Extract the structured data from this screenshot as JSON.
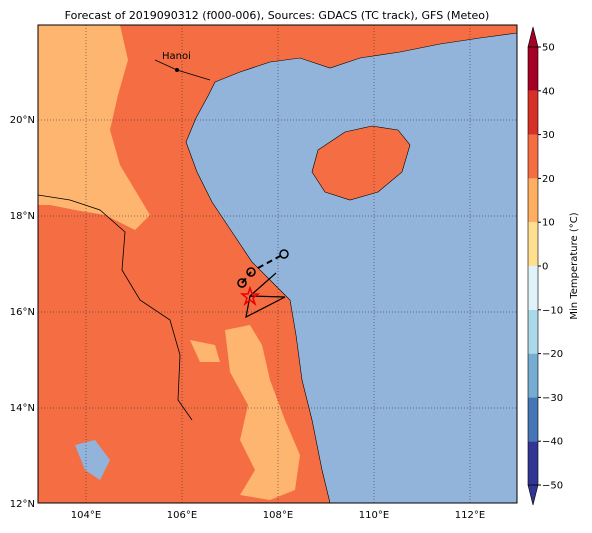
{
  "title": "Forecast of 2019090312 (f000-006), Sources: GDACS (TC track), GFS (Meteo)",
  "map": {
    "lon_labels": [
      "104°E",
      "106°E",
      "108°E",
      "110°E",
      "112°E"
    ],
    "lat_labels": [
      "12°N",
      "14°N",
      "16°N",
      "18°N",
      "20°N"
    ],
    "city": "Hanoi"
  },
  "colorbar": {
    "label": "Min Temperature (°C)",
    "ticks": [
      {
        "value": -50,
        "label": "−50"
      },
      {
        "value": -40,
        "label": "−40"
      },
      {
        "value": -30,
        "label": "−30"
      },
      {
        "value": -20,
        "label": "−20"
      },
      {
        "value": -10,
        "label": "−10"
      },
      0,
      10,
      20,
      30,
      40,
      50
    ],
    "colors": [
      "#313695",
      "#4575b4",
      "#74add1",
      "#abd9e9",
      "#e0f3f8",
      "#ffffbf",
      "#fee090",
      "#fdae61",
      "#f46d43",
      "#d73027",
      "#a50026"
    ]
  }
}
